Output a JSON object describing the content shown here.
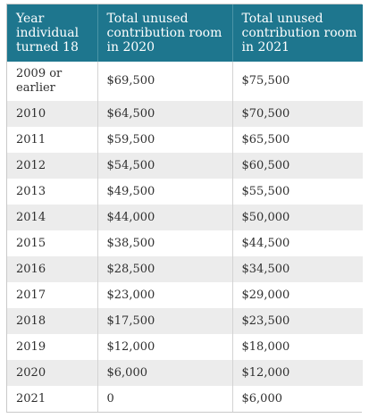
{
  "table": {
    "headers": [
      "Year individual turned 18",
      "Total unused contribution room in 2020",
      "Total unused contribution room in 2021"
    ],
    "rows": [
      [
        "2009 or earlier",
        "$69,500",
        "$75,500"
      ],
      [
        "2010",
        "$64,500",
        "$70,500"
      ],
      [
        "2011",
        "$59,500",
        "$65,500"
      ],
      [
        "2012",
        "$54,500",
        "$60,500"
      ],
      [
        "2013",
        "$49,500",
        "$55,500"
      ],
      [
        "2014",
        "$44,000",
        "$50,000"
      ],
      [
        "2015",
        "$38,500",
        "$44,500"
      ],
      [
        "2016",
        "$28,500",
        "$34,500"
      ],
      [
        "2017",
        "$23,000",
        "$29,000"
      ],
      [
        "2018",
        "$17,500",
        "$23,500"
      ],
      [
        "2019",
        "$12,000",
        "$18,000"
      ],
      [
        "2020",
        "$6,000",
        "$12,000"
      ],
      [
        "2021",
        "0",
        "$6,000"
      ]
    ]
  },
  "colors": {
    "header_background": "#1e768e",
    "header_text": "#ffffff",
    "row_stripe": "#ececec",
    "row_plain": "#ffffff",
    "body_text": "#2f2f2f"
  }
}
